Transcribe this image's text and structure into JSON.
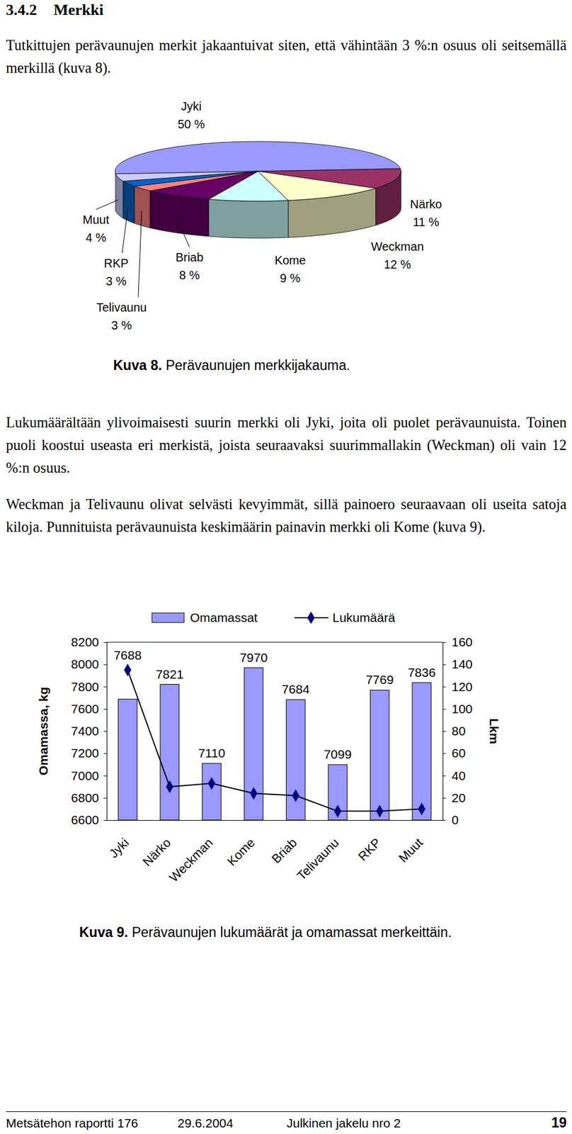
{
  "heading": {
    "number": "3.4.2",
    "title": "Merkki"
  },
  "paragraphs": [
    "Tutkittujen perävaunujen merkit jakaantuivat siten, että vähintään 3 %:n osuus oli seitsemällä merkillä (kuva 8).",
    "Lukumäärältään ylivoimaisesti suurin merkki oli Jyki, joita oli puolet perävaunuista. Toinen puoli koostui useasta eri merkistä, joista seuraavaksi suurimmallakin (Weckman) oli vain 12 %:n osuus.",
    "Weckman ja Telivaunu olivat selvästi kevyimmät, sillä painoero seuraavaan oli useita satoja kiloja. Punnituista perävaunuista keskimäärin painavin merkki oli Kome (kuva 9)."
  ],
  "captions": [
    {
      "label": "Kuva 8.",
      "text": "Perävaunujen merkkijakauma."
    },
    {
      "label": "Kuva 9.",
      "text": "Perävaunujen lukumäärät ja omamassat merkeittäin."
    }
  ],
  "chart_data": [
    {
      "type": "pie",
      "categories": [
        "Jyki",
        "Närko",
        "Weckman",
        "Kome",
        "Briab",
        "Telivaunu",
        "RKP",
        "Muut"
      ],
      "values": [
        50,
        11,
        12,
        9,
        8,
        3,
        3,
        4
      ],
      "value_labels": [
        "50 %",
        "11 %",
        "12 %",
        "9 %",
        "8 %",
        "3 %",
        "3 %",
        "4 %"
      ],
      "colors": [
        "#9999FF",
        "#993366",
        "#FFFFCC",
        "#CCFFFF",
        "#660066",
        "#FF8080",
        "#0066CC",
        "#CCCCFF"
      ],
      "data_labels": true
    },
    {
      "type": "bar",
      "categories": [
        "Jyki",
        "Närko",
        "Weckman",
        "Kome",
        "Briab",
        "Telivaunu",
        "RKP",
        "Muut"
      ],
      "series": [
        {
          "name": "Omamassat",
          "type": "bar",
          "color": "#9999FF",
          "data_labels": true,
          "values": [
            7688,
            7821,
            7110,
            7970,
            7684,
            7099,
            7769,
            7836
          ]
        },
        {
          "name": "Lukumäärä",
          "type": "line",
          "color": "#000080",
          "marker": "diamond",
          "axis": "y2",
          "values": [
            135,
            30,
            33,
            24,
            22,
            8,
            8,
            10
          ]
        }
      ],
      "ylabel": "Omamassa, kg",
      "y2label": "Lkm",
      "ylim": [
        6600,
        8200
      ],
      "yticks": [
        6600,
        6800,
        7000,
        7200,
        7400,
        7600,
        7800,
        8000,
        8200
      ],
      "y2lim": [
        0,
        160
      ],
      "y2ticks": [
        0,
        20,
        40,
        60,
        80,
        100,
        120,
        140,
        160
      ],
      "grid": false,
      "legend": "top"
    }
  ],
  "footer": {
    "report": "Metsätehon raportti 176",
    "date": "29.6.2004",
    "distribution": "Julkinen jakelu nro 2",
    "page": "19"
  }
}
